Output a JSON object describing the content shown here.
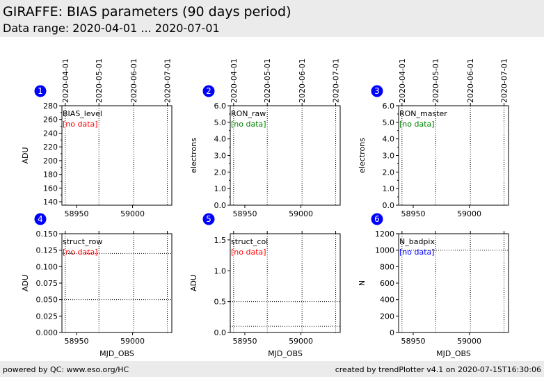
{
  "header": {
    "title": "GIRAFFE: BIAS parameters (90 days period)",
    "subtitle": "Data range: 2020-04-01 ... 2020-07-01"
  },
  "footer": {
    "left": "powered by QC: www.eso.org/HC",
    "right": "created by trendPlotter v4.1 on 2020-07-15T16:30:06"
  },
  "colors": {
    "badge": "#0000ff",
    "no_data_red": "#ff0000",
    "no_data_green": "#008000",
    "no_data_blue": "#0000ff"
  },
  "chart_data": [
    {
      "type": "scatter",
      "panel_number": "1",
      "label": "BIAS_level",
      "no_data_text": "[no data]",
      "no_data_color": "#ff0000",
      "xlabel": "",
      "ylabel": "ADU",
      "xlim": [
        58937,
        59035
      ],
      "ylim": [
        135,
        280
      ],
      "x_ticks": [
        58950,
        59000
      ],
      "x_tick_labels": [
        "58950",
        "59000"
      ],
      "y_ticks": [
        140,
        160,
        180,
        200,
        220,
        240,
        260,
        280
      ],
      "y_tick_labels": [
        "140",
        "160",
        "180",
        "200",
        "220",
        "240",
        "260",
        "280"
      ],
      "y_minor_ticks": [
        150,
        170,
        190,
        210,
        230,
        250,
        270
      ],
      "top_dates": [
        "2020-04-01",
        "2020-05-01",
        "2020-06-01",
        "2020-07-01"
      ],
      "vlines_mjd": [
        58940,
        58970,
        59001,
        59031
      ],
      "hlines": [],
      "values": []
    },
    {
      "type": "scatter",
      "panel_number": "2",
      "label": "RON_raw",
      "no_data_text": "[no data]",
      "no_data_color": "#008000",
      "xlabel": "",
      "ylabel": "electrons",
      "xlim": [
        58937,
        59035
      ],
      "ylim": [
        0,
        6
      ],
      "x_ticks": [
        58950,
        59000
      ],
      "x_tick_labels": [
        "58950",
        "59000"
      ],
      "y_ticks": [
        0,
        1,
        2,
        3,
        4,
        5,
        6
      ],
      "y_tick_labels": [
        "0.0",
        "1.0",
        "2.0",
        "3.0",
        "4.0",
        "5.0",
        "6.0"
      ],
      "y_minor_ticks": [
        0.5,
        1.5,
        2.5,
        3.5,
        4.5,
        5.5
      ],
      "top_dates": [
        "2020-04-01",
        "2020-05-01",
        "2020-06-01",
        "2020-07-01"
      ],
      "vlines_mjd": [
        58940,
        58970,
        59001,
        59031
      ],
      "hlines": [],
      "values": []
    },
    {
      "type": "scatter",
      "panel_number": "3",
      "label": "RON_master",
      "no_data_text": "[no data]",
      "no_data_color": "#008000",
      "xlabel": "",
      "ylabel": "electrons",
      "xlim": [
        58937,
        59035
      ],
      "ylim": [
        0,
        6
      ],
      "x_ticks": [
        58950,
        59000
      ],
      "x_tick_labels": [
        "58950",
        "59000"
      ],
      "y_ticks": [
        0,
        1,
        2,
        3,
        4,
        5,
        6
      ],
      "y_tick_labels": [
        "0.0",
        "1.0",
        "2.0",
        "3.0",
        "4.0",
        "5.0",
        "6.0"
      ],
      "y_minor_ticks": [
        0.5,
        1.5,
        2.5,
        3.5,
        4.5,
        5.5
      ],
      "top_dates": [
        "2020-04-01",
        "2020-05-01",
        "2020-06-01",
        "2020-07-01"
      ],
      "vlines_mjd": [
        58940,
        58970,
        59001,
        59031
      ],
      "hlines": [],
      "values": []
    },
    {
      "type": "scatter",
      "panel_number": "4",
      "label": "struct_row",
      "no_data_text": "[no data]",
      "no_data_color": "#ff0000",
      "xlabel": "MJD_OBS",
      "ylabel": "ADU",
      "xlim": [
        58937,
        59035
      ],
      "ylim": [
        0,
        0.15
      ],
      "x_ticks": [
        58950,
        59000
      ],
      "x_tick_labels": [
        "58950",
        "59000"
      ],
      "y_ticks": [
        0,
        0.025,
        0.05,
        0.075,
        0.1,
        0.125,
        0.15
      ],
      "y_tick_labels": [
        "0.000",
        "0.025",
        "0.050",
        "0.075",
        "0.100",
        "0.125",
        "0.150"
      ],
      "y_minor_ticks": [],
      "top_dates": [],
      "vlines_mjd": [
        58940,
        58970,
        59001,
        59031
      ],
      "hlines": [
        0.05,
        0.12
      ],
      "values": []
    },
    {
      "type": "scatter",
      "panel_number": "5",
      "label": "struct_col",
      "no_data_text": "[no data]",
      "no_data_color": "#ff0000",
      "xlabel": "MJD_OBS",
      "ylabel": "ADU",
      "xlim": [
        58937,
        59035
      ],
      "ylim": [
        0,
        1.6
      ],
      "x_ticks": [
        58950,
        59000
      ],
      "x_tick_labels": [
        "58950",
        "59000"
      ],
      "y_ticks": [
        0,
        0.5,
        1,
        1.5
      ],
      "y_tick_labels": [
        "0.0",
        "0.5",
        "1.0",
        "1.5"
      ],
      "y_minor_ticks": [],
      "top_dates": [],
      "vlines_mjd": [
        58940,
        58970,
        59001,
        59031
      ],
      "hlines": [
        0.1,
        0.5
      ],
      "values": []
    },
    {
      "type": "scatter",
      "panel_number": "6",
      "label": "N_badpix",
      "no_data_text": "[no data]",
      "no_data_color": "#0000ff",
      "xlabel": "MJD_OBS",
      "ylabel": "N",
      "xlim": [
        58937,
        59035
      ],
      "ylim": [
        0,
        1200
      ],
      "x_ticks": [
        58950,
        59000
      ],
      "x_tick_labels": [
        "58950",
        "59000"
      ],
      "y_ticks": [
        0,
        200,
        400,
        600,
        800,
        1000,
        1200
      ],
      "y_tick_labels": [
        "0",
        "200",
        "400",
        "600",
        "800",
        "1000",
        "1200"
      ],
      "y_minor_ticks": [],
      "top_dates": [],
      "vlines_mjd": [
        58940,
        58970,
        59001,
        59031
      ],
      "hlines": [
        1000
      ],
      "values": []
    }
  ]
}
